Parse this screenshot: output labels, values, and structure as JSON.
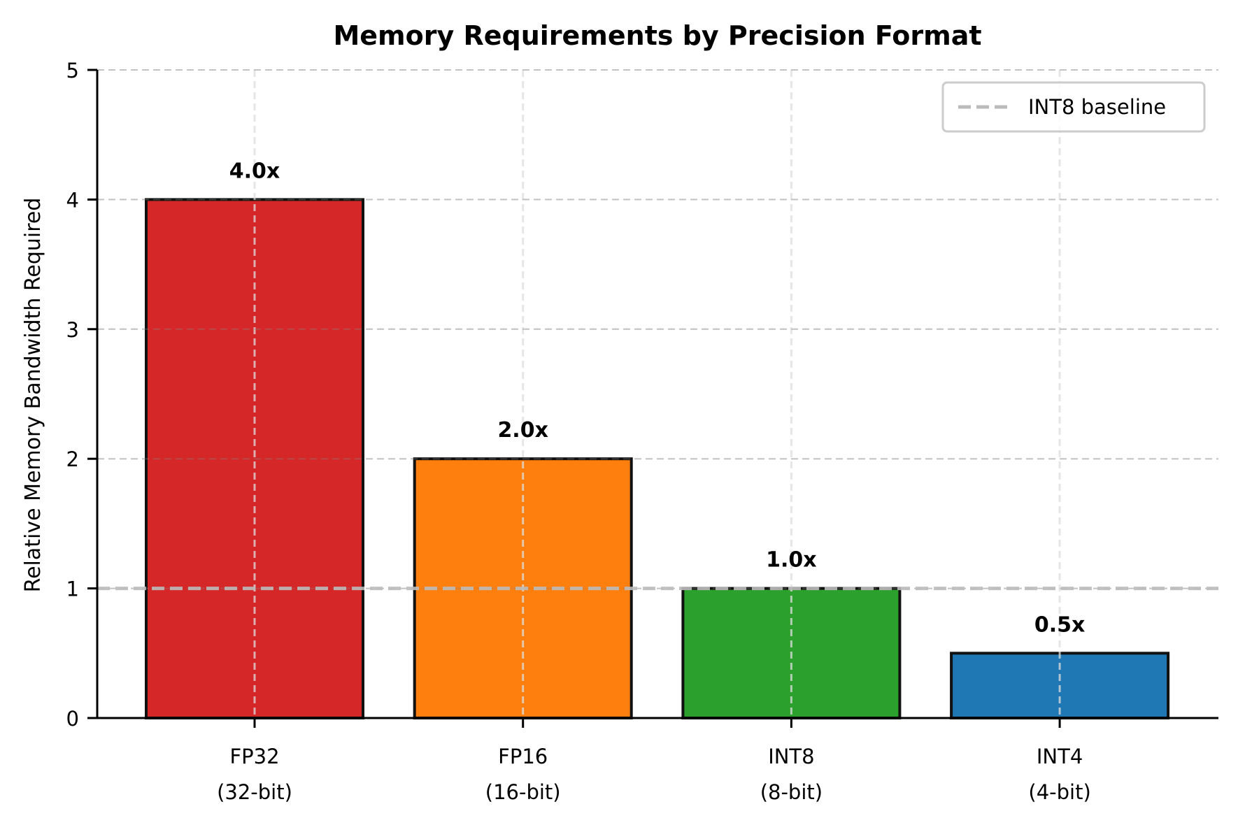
{
  "chart_data": {
    "type": "bar",
    "title": "Memory Requirements by Precision Format",
    "xlabel": "",
    "ylabel": "Relative Memory Bandwidth Required",
    "categories": [
      "FP32\n(32-bit)",
      "FP16\n(16-bit)",
      "INT8\n(8-bit)",
      "INT4\n(4-bit)"
    ],
    "category_lines": [
      [
        "FP32",
        "(32-bit)"
      ],
      [
        "FP16",
        "(16-bit)"
      ],
      [
        "INT8",
        "(8-bit)"
      ],
      [
        "INT4",
        "(4-bit)"
      ]
    ],
    "values": [
      4.0,
      2.0,
      1.0,
      0.5
    ],
    "value_labels": [
      "4.0x",
      "2.0x",
      "1.0x",
      "0.5x"
    ],
    "colors": [
      "#d62728",
      "#ff7f0e",
      "#2ca02c",
      "#1f77b4"
    ],
    "ylim": [
      0,
      5
    ],
    "yticks": [
      0,
      1,
      2,
      3,
      4,
      5
    ],
    "grid": true,
    "reference_line": {
      "y": 1.0,
      "label": "INT8 baseline",
      "color": "#bbbbbb",
      "style": "dashed"
    },
    "legend": {
      "position": "upper right",
      "entries": [
        "INT8 baseline"
      ]
    }
  }
}
